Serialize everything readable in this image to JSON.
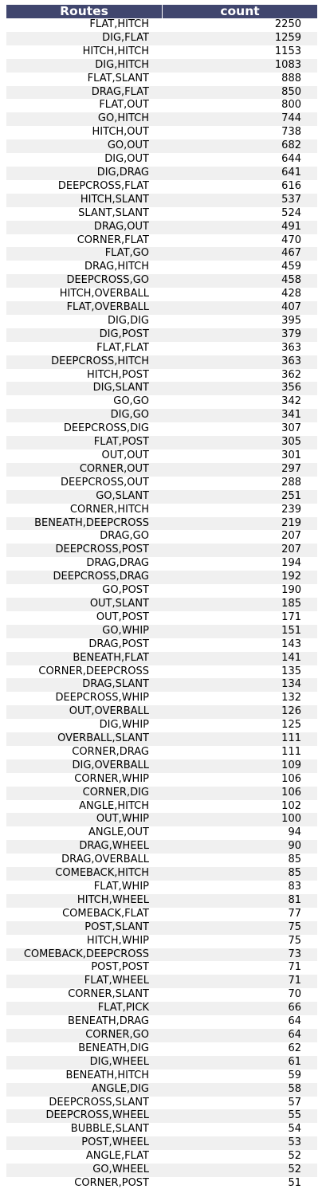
{
  "chart_data": {
    "type": "table",
    "columns": [
      "Routes",
      "count"
    ],
    "rows": [
      [
        "FLAT,HITCH",
        2250
      ],
      [
        "DIG,FLAT",
        1259
      ],
      [
        "HITCH,HITCH",
        1153
      ],
      [
        "DIG,HITCH",
        1083
      ],
      [
        "FLAT,SLANT",
        888
      ],
      [
        "DRAG,FLAT",
        850
      ],
      [
        "FLAT,OUT",
        800
      ],
      [
        "GO,HITCH",
        744
      ],
      [
        "HITCH,OUT",
        738
      ],
      [
        "GO,OUT",
        682
      ],
      [
        "DIG,OUT",
        644
      ],
      [
        "DIG,DRAG",
        641
      ],
      [
        "DEEPCROSS,FLAT",
        616
      ],
      [
        "HITCH,SLANT",
        537
      ],
      [
        "SLANT,SLANT",
        524
      ],
      [
        "DRAG,OUT",
        491
      ],
      [
        "CORNER,FLAT",
        470
      ],
      [
        "FLAT,GO",
        467
      ],
      [
        "DRAG,HITCH",
        459
      ],
      [
        "DEEPCROSS,GO",
        458
      ],
      [
        "HITCH,OVERBALL",
        428
      ],
      [
        "FLAT,OVERBALL",
        407
      ],
      [
        "DIG,DIG",
        395
      ],
      [
        "DIG,POST",
        379
      ],
      [
        "FLAT,FLAT",
        363
      ],
      [
        "DEEPCROSS,HITCH",
        363
      ],
      [
        "HITCH,POST",
        362
      ],
      [
        "DIG,SLANT",
        356
      ],
      [
        "GO,GO",
        342
      ],
      [
        "DIG,GO",
        341
      ],
      [
        "DEEPCROSS,DIG",
        307
      ],
      [
        "FLAT,POST",
        305
      ],
      [
        "OUT,OUT",
        301
      ],
      [
        "CORNER,OUT",
        297
      ],
      [
        "DEEPCROSS,OUT",
        288
      ],
      [
        "GO,SLANT",
        251
      ],
      [
        "CORNER,HITCH",
        239
      ],
      [
        "BENEATH,DEEPCROSS",
        219
      ],
      [
        "DRAG,GO",
        207
      ],
      [
        "DEEPCROSS,POST",
        207
      ],
      [
        "DRAG,DRAG",
        194
      ],
      [
        "DEEPCROSS,DRAG",
        192
      ],
      [
        "GO,POST",
        190
      ],
      [
        "OUT,SLANT",
        185
      ],
      [
        "OUT,POST",
        171
      ],
      [
        "GO,WHIP",
        151
      ],
      [
        "DRAG,POST",
        143
      ],
      [
        "BENEATH,FLAT",
        141
      ],
      [
        "CORNER,DEEPCROSS",
        135
      ],
      [
        "DRAG,SLANT",
        134
      ],
      [
        "DEEPCROSS,WHIP",
        132
      ],
      [
        "OUT,OVERBALL",
        126
      ],
      [
        "DIG,WHIP",
        125
      ],
      [
        "OVERBALL,SLANT",
        111
      ],
      [
        "CORNER,DRAG",
        111
      ],
      [
        "DIG,OVERBALL",
        109
      ],
      [
        "CORNER,WHIP",
        106
      ],
      [
        "CORNER,DIG",
        106
      ],
      [
        "ANGLE,HITCH",
        102
      ],
      [
        "OUT,WHIP",
        100
      ],
      [
        "ANGLE,OUT",
        94
      ],
      [
        "DRAG,WHEEL",
        90
      ],
      [
        "DRAG,OVERBALL",
        85
      ],
      [
        "COMEBACK,HITCH",
        85
      ],
      [
        "FLAT,WHIP",
        83
      ],
      [
        "HITCH,WHEEL",
        81
      ],
      [
        "COMEBACK,FLAT",
        77
      ],
      [
        "POST,SLANT",
        75
      ],
      [
        "HITCH,WHIP",
        75
      ],
      [
        "COMEBACK,DEEPCROSS",
        73
      ],
      [
        "POST,POST",
        71
      ],
      [
        "FLAT,WHEEL",
        71
      ],
      [
        "CORNER,SLANT",
        70
      ],
      [
        "FLAT,PICK",
        66
      ],
      [
        "BENEATH,DRAG",
        64
      ],
      [
        "CORNER,GO",
        64
      ],
      [
        "BENEATH,DIG",
        62
      ],
      [
        "DIG,WHEEL",
        61
      ],
      [
        "BENEATH,HITCH",
        59
      ],
      [
        "ANGLE,DIG",
        58
      ],
      [
        "DEEPCROSS,SLANT",
        57
      ],
      [
        "DEEPCROSS,WHEEL",
        55
      ],
      [
        "BUBBLE,SLANT",
        54
      ],
      [
        "POST,WHEEL",
        53
      ],
      [
        "ANGLE,FLAT",
        52
      ],
      [
        "GO,WHEEL",
        52
      ],
      [
        "CORNER,POST",
        51
      ]
    ]
  },
  "colors": {
    "header_bg": "#40466e",
    "header_text": "#ffffff",
    "stripe": "#f0f0f0"
  }
}
